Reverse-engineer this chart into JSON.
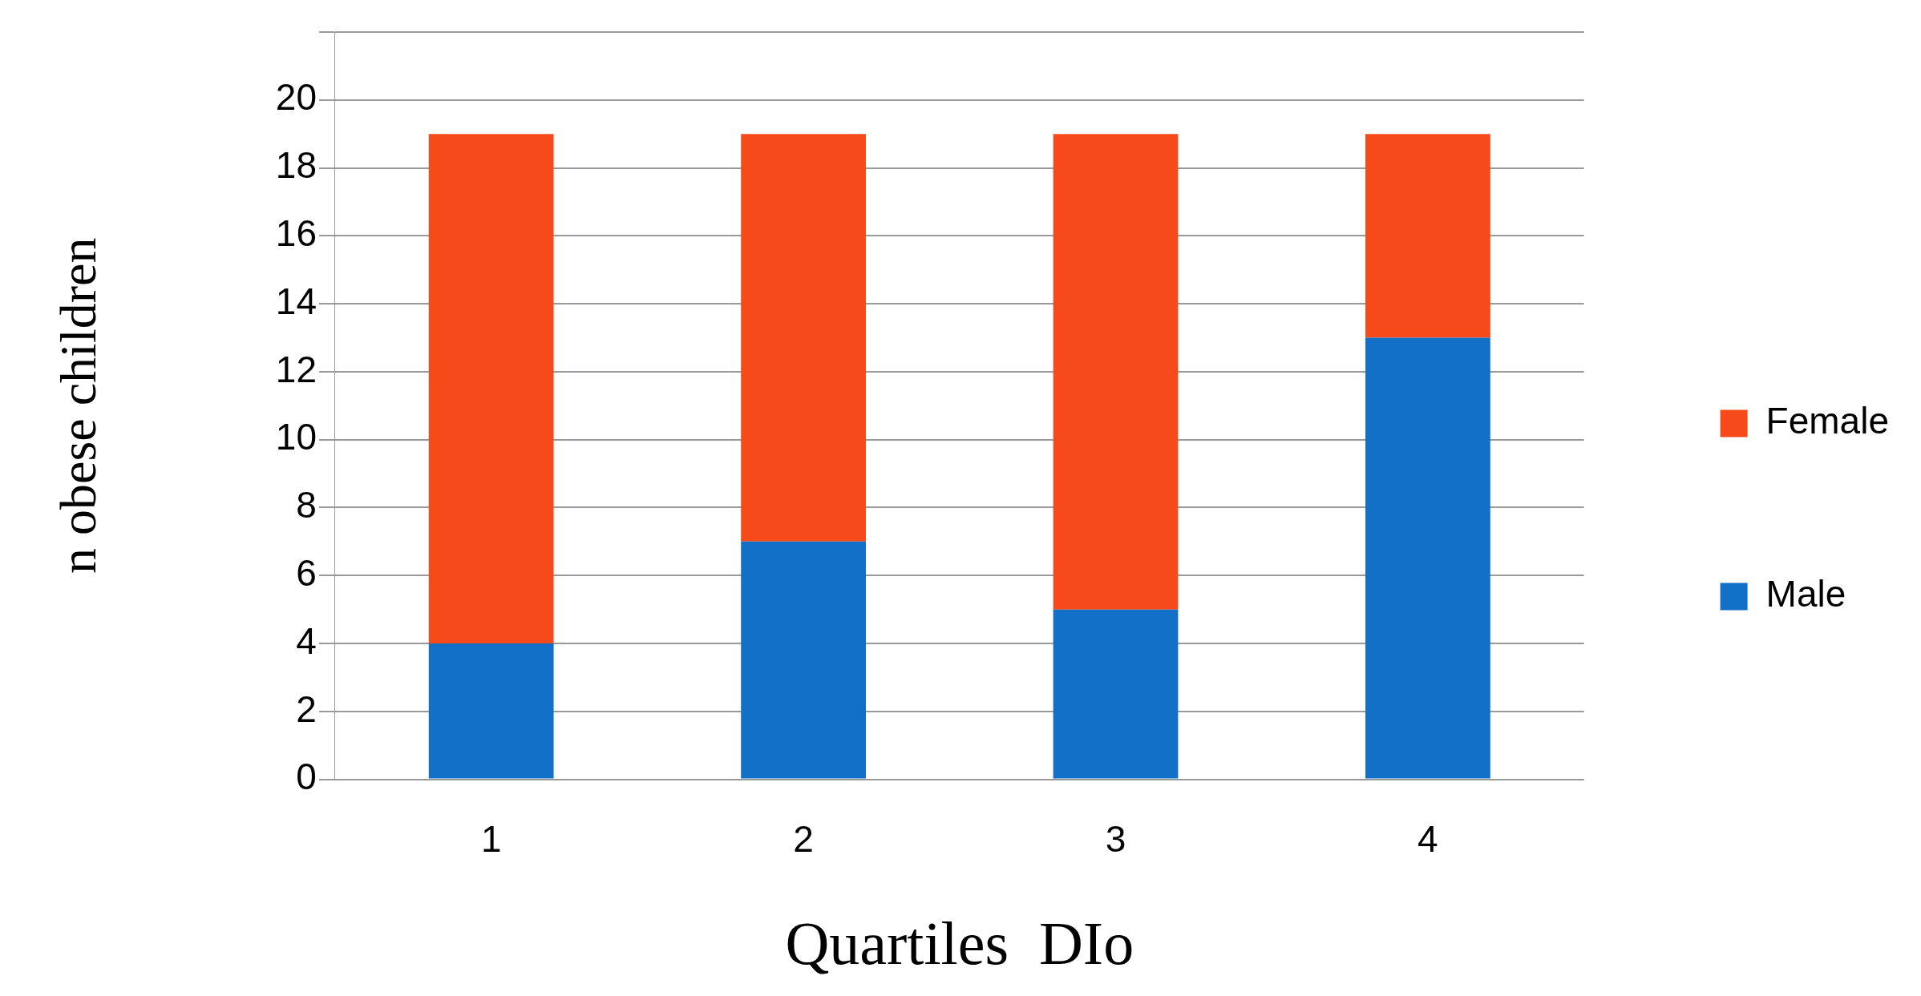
{
  "chart_data": {
    "type": "bar",
    "stacked": true,
    "xlabel": "Quartiles  DIo",
    "ylabel": "n obese children",
    "categories": [
      "1",
      "2",
      "3",
      "4"
    ],
    "series": [
      {
        "name": "Male",
        "color": "#1270c8",
        "values": [
          4,
          7,
          5,
          13
        ]
      },
      {
        "name": "Female",
        "color": "#f74a1a",
        "values": [
          15,
          12,
          14,
          6
        ]
      }
    ],
    "ylim": [
      0,
      22
    ],
    "yticks": [
      0,
      2,
      4,
      6,
      8,
      10,
      12,
      14,
      16,
      18,
      20,
      {
        "value": 22,
        "label": null
      }
    ],
    "grid": "y",
    "legend": "right"
  }
}
